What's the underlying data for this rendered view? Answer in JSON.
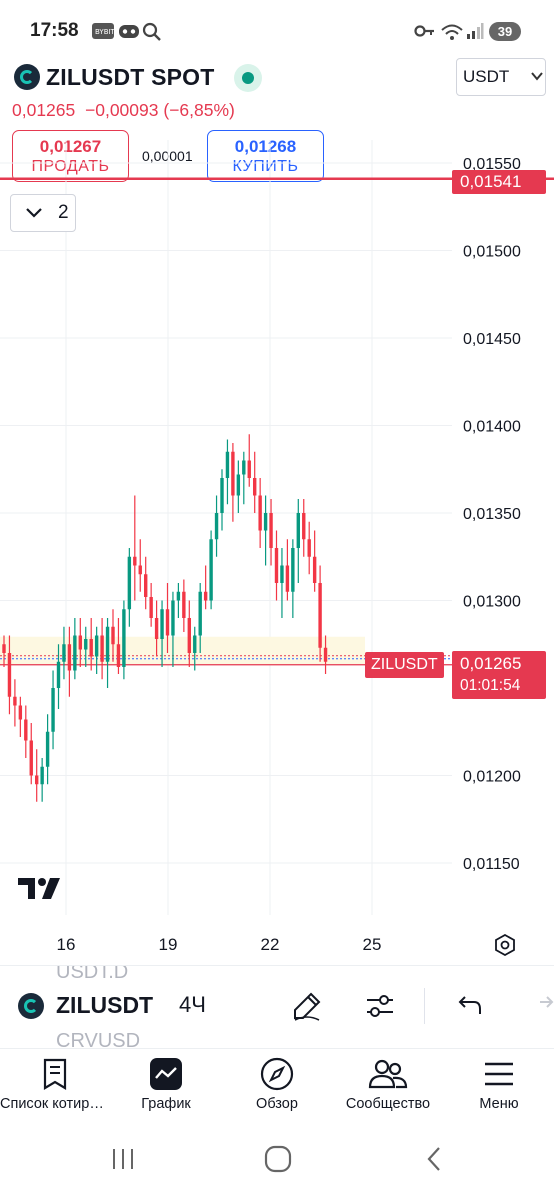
{
  "status_bar": {
    "time": "17:58",
    "battery": "39"
  },
  "header": {
    "symbol": "ZILUSDT SPOT",
    "currency": "USDT",
    "last_price": "0,01265",
    "change": "−0,00093 (−6,85%)",
    "sell": {
      "price": "0,01267",
      "label": "ПРОДАТЬ"
    },
    "buy": {
      "price": "0,01268",
      "label": "КУПИТЬ"
    },
    "spread": "0,00001",
    "collapsed_count": "2"
  },
  "chart_data": {
    "type": "candlestick",
    "symbol": "ZILUSDT",
    "interval": "4Ч",
    "y_ticks": [
      "0,01550",
      "0,01500",
      "0,01450",
      "0,01400",
      "0,01350",
      "0,01300",
      "0,01200",
      "0,01150"
    ],
    "ylim": [
      0.01121,
      0.01567
    ],
    "x_ticks": [
      "16",
      "19",
      "22",
      "25"
    ],
    "candles_ohlc": [
      [
        0.01275,
        0.0128,
        0.01262,
        0.0127
      ],
      [
        0.0127,
        0.0128,
        0.01235,
        0.01245
      ],
      [
        0.01245,
        0.01255,
        0.01228,
        0.0124
      ],
      [
        0.0124,
        0.01245,
        0.01222,
        0.01232
      ],
      [
        0.01232,
        0.0124,
        0.0121,
        0.0122
      ],
      [
        0.0122,
        0.0123,
        0.01195,
        0.012
      ],
      [
        0.012,
        0.01215,
        0.01185,
        0.01195
      ],
      [
        0.01195,
        0.0121,
        0.01185,
        0.01205
      ],
      [
        0.01205,
        0.01235,
        0.01195,
        0.01225
      ],
      [
        0.01225,
        0.0126,
        0.01215,
        0.0125
      ],
      [
        0.0125,
        0.01275,
        0.01238,
        0.01265
      ],
      [
        0.01265,
        0.01285,
        0.01255,
        0.01275
      ],
      [
        0.01275,
        0.01285,
        0.01245,
        0.0126
      ],
      [
        0.0126,
        0.0129,
        0.01255,
        0.0128
      ],
      [
        0.0128,
        0.0129,
        0.01262,
        0.01272
      ],
      [
        0.01272,
        0.01285,
        0.01262,
        0.01278
      ],
      [
        0.01278,
        0.0129,
        0.0126,
        0.01268
      ],
      [
        0.01268,
        0.01285,
        0.01258,
        0.0128
      ],
      [
        0.0128,
        0.0129,
        0.01255,
        0.01265
      ],
      [
        0.01265,
        0.0129,
        0.0125,
        0.01285
      ],
      [
        0.01285,
        0.01295,
        0.01265,
        0.01275
      ],
      [
        0.01275,
        0.0129,
        0.01258,
        0.01262
      ],
      [
        0.01262,
        0.013,
        0.01255,
        0.01295
      ],
      [
        0.01295,
        0.0133,
        0.01285,
        0.01325
      ],
      [
        0.01325,
        0.0136,
        0.013,
        0.0132
      ],
      [
        0.0132,
        0.01335,
        0.01305,
        0.01315
      ],
      [
        0.01315,
        0.01325,
        0.01295,
        0.01302
      ],
      [
        0.01302,
        0.0131,
        0.01285,
        0.0129
      ],
      [
        0.0129,
        0.013,
        0.01268,
        0.01278
      ],
      [
        0.01278,
        0.013,
        0.01262,
        0.01295
      ],
      [
        0.01295,
        0.0131,
        0.0127,
        0.0128
      ],
      [
        0.0128,
        0.01305,
        0.01262,
        0.013
      ],
      [
        0.013,
        0.0131,
        0.0129,
        0.01305
      ],
      [
        0.01305,
        0.01312,
        0.01282,
        0.0129
      ],
      [
        0.0129,
        0.013,
        0.01262,
        0.0127
      ],
      [
        0.0127,
        0.01285,
        0.0126,
        0.0128
      ],
      [
        0.0128,
        0.0131,
        0.0127,
        0.01305
      ],
      [
        0.01305,
        0.0132,
        0.01295,
        0.013
      ],
      [
        0.013,
        0.0134,
        0.01295,
        0.01335
      ],
      [
        0.01335,
        0.0136,
        0.01325,
        0.0135
      ],
      [
        0.0135,
        0.01375,
        0.0134,
        0.0137
      ],
      [
        0.0137,
        0.01392,
        0.01355,
        0.01385
      ],
      [
        0.01385,
        0.0139,
        0.01345,
        0.0136
      ],
      [
        0.0136,
        0.0138,
        0.0135,
        0.01372
      ],
      [
        0.01372,
        0.01385,
        0.01355,
        0.0138
      ],
      [
        0.0138,
        0.01395,
        0.01365,
        0.0137
      ],
      [
        0.0137,
        0.01385,
        0.0135,
        0.0136
      ],
      [
        0.0136,
        0.0137,
        0.0133,
        0.0134
      ],
      [
        0.0134,
        0.0136,
        0.0132,
        0.0135
      ],
      [
        0.0135,
        0.01358,
        0.0132,
        0.0133
      ],
      [
        0.0133,
        0.0134,
        0.013,
        0.0131
      ],
      [
        0.0131,
        0.0133,
        0.0129,
        0.0132
      ],
      [
        0.0132,
        0.01335,
        0.013,
        0.01305
      ],
      [
        0.01305,
        0.01335,
        0.0129,
        0.0133
      ],
      [
        0.0133,
        0.01358,
        0.0131,
        0.0135
      ],
      [
        0.0135,
        0.01358,
        0.01325,
        0.01335
      ],
      [
        0.01335,
        0.01345,
        0.01315,
        0.01325
      ],
      [
        0.01325,
        0.0134,
        0.01305,
        0.0131
      ],
      [
        0.0131,
        0.0132,
        0.01265,
        0.01273
      ],
      [
        0.01273,
        0.0128,
        0.01258,
        0.01265
      ]
    ],
    "price_levels": {
      "alert": "0,01541",
      "current": "0,01265",
      "countdown": "01:01:54"
    },
    "current_label": "ZILUSDT",
    "colors": {
      "up": "#089981",
      "down": "#f23645",
      "grid": "#eef0f3"
    }
  },
  "toolbar": {
    "symbol": "ZILUSDT",
    "interval": "4Ч",
    "ghost_above": "USDT.D",
    "ghost_below": "CRVUSD"
  },
  "nav": {
    "items": [
      {
        "label": "Список котировок",
        "icon": "watchlist-icon"
      },
      {
        "label": "График",
        "icon": "chart-icon"
      },
      {
        "label": "Обзор",
        "icon": "compass-icon"
      },
      {
        "label": "Сообщество",
        "icon": "community-icon"
      },
      {
        "label": "Меню",
        "icon": "menu-icon"
      }
    ]
  }
}
